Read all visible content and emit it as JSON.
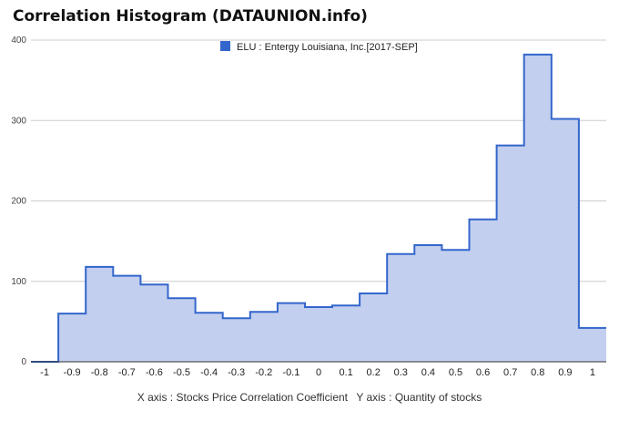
{
  "chart_data": {
    "type": "area",
    "title": "Correlation Histogram (DATAUNION.info)",
    "legend": {
      "position": "top-center",
      "entries": [
        {
          "name": "ELU : Entergy Louisiana, Inc.[2017-SEP]",
          "color": "#3366cc"
        }
      ]
    },
    "x_axis_caption": "X axis : Stocks Price Correlation Coefficient",
    "y_axis_caption": "Y axis : Quantity of stocks",
    "xlim": [
      -1.05,
      1.05
    ],
    "ylim": [
      0,
      400
    ],
    "grid": true,
    "x_ticks": [
      {
        "value": -1,
        "label": "-1"
      },
      {
        "value": -0.9,
        "label": "-0.9"
      },
      {
        "value": -0.8,
        "label": "-0.8"
      },
      {
        "value": -0.7,
        "label": "-0.7"
      },
      {
        "value": -0.6,
        "label": "-0.6"
      },
      {
        "value": -0.5,
        "label": "-0.5"
      },
      {
        "value": -0.4,
        "label": "-0.4"
      },
      {
        "value": -0.3,
        "label": "-0.3"
      },
      {
        "value": -0.2,
        "label": "-0.2"
      },
      {
        "value": -0.1,
        "label": "-0.1"
      },
      {
        "value": 0,
        "label": "0"
      },
      {
        "value": 0.1,
        "label": "0.1"
      },
      {
        "value": 0.2,
        "label": "0.2"
      },
      {
        "value": 0.3,
        "label": "0.3"
      },
      {
        "value": 0.4,
        "label": "0.4"
      },
      {
        "value": 0.5,
        "label": "0.5"
      },
      {
        "value": 0.6,
        "label": "0.6"
      },
      {
        "value": 0.7,
        "label": "0.7"
      },
      {
        "value": 0.8,
        "label": "0.8"
      },
      {
        "value": 0.9,
        "label": "0.9"
      },
      {
        "value": 1,
        "label": "1"
      }
    ],
    "y_ticks": [
      {
        "value": 0,
        "label": "0"
      },
      {
        "value": 100,
        "label": "100"
      },
      {
        "value": 200,
        "label": "200"
      },
      {
        "value": 300,
        "label": "300"
      },
      {
        "value": 400,
        "label": "400"
      }
    ],
    "series": [
      {
        "name": "ELU : Entergy Louisiana, Inc.[2017-SEP]",
        "color": "#3366cc",
        "fill": "#c3cfef",
        "x": [
          -1,
          -0.9,
          -0.8,
          -0.7,
          -0.6,
          -0.5,
          -0.4,
          -0.3,
          -0.2,
          -0.1,
          0,
          0.1,
          0.2,
          0.3,
          0.4,
          0.5,
          0.6,
          0.7,
          0.8,
          0.9,
          1
        ],
        "values": [
          0,
          60,
          118,
          107,
          96,
          79,
          61,
          54,
          62,
          73,
          68,
          70,
          85,
          134,
          145,
          139,
          177,
          269,
          382,
          302,
          42
        ]
      }
    ]
  }
}
